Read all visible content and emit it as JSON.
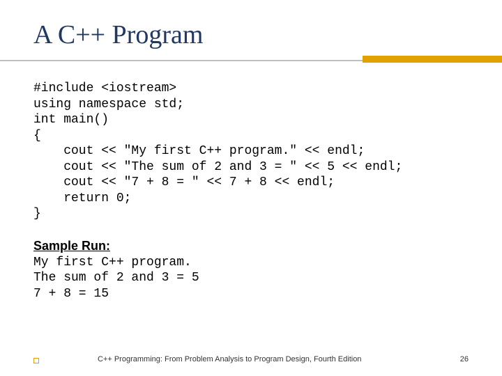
{
  "colors": {
    "title": "#1f3864",
    "rule_gray": "#bfbfbf",
    "rule_accent": "#e2a100",
    "code": "#000000",
    "footer": "#333333"
  },
  "title": "A C++ Program",
  "code": "#include <iostream>\nusing namespace std;\nint main()\n{\n    cout << \"My first C++ program.\" << endl;\n    cout << \"The sum of 2 and 3 = \" << 5 << endl;\n    cout << \"7 + 8 = \" << 7 + 8 << endl;\n    return 0;\n}",
  "sample_label": "Sample Run:",
  "sample_output": "My first C++ program.\nThe sum of 2 and 3 = 5\n7 + 8 = 15",
  "footer": {
    "text": "C++ Programming: From Problem Analysis to Program Design, Fourth Edition",
    "page": "26"
  }
}
